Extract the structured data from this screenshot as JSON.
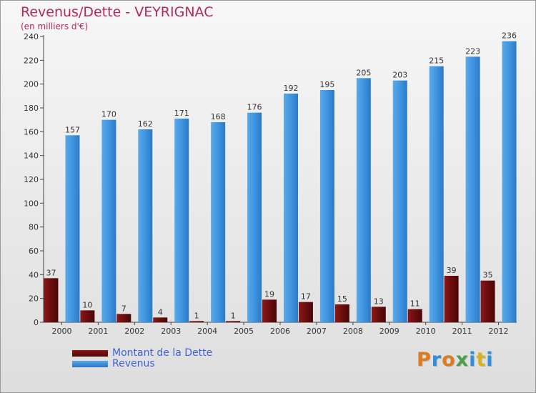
{
  "chart_data": {
    "type": "bar",
    "title": "Revenus/Dette - VEYRIGNAC",
    "subtitle": "(en milliers d'€)",
    "categories": [
      "2000",
      "2001",
      "2002",
      "2003",
      "2004",
      "2005",
      "2006",
      "2007",
      "2008",
      "2009",
      "2010",
      "2011",
      "2012"
    ],
    "series": [
      {
        "name": "Montant de la Dette",
        "color": "#6b0d0d",
        "values": [
          37,
          10,
          7,
          4,
          1,
          1,
          19,
          17,
          15,
          13,
          11,
          39,
          35
        ]
      },
      {
        "name": "Revenus",
        "color": "#3c8fdc",
        "values": [
          157,
          170,
          162,
          171,
          168,
          176,
          192,
          195,
          205,
          203,
          215,
          223,
          236
        ]
      }
    ],
    "yticks": [
      0,
      20,
      40,
      60,
      80,
      100,
      120,
      140,
      160,
      180,
      200,
      220,
      240
    ],
    "ylim": [
      0,
      240
    ],
    "xlabel": "",
    "ylabel": "",
    "grid": false,
    "legend_position": "bottom-left"
  },
  "logo": {
    "letters": [
      {
        "ch": "P",
        "color": "#e07a1e"
      },
      {
        "ch": "r",
        "color": "#2f8fd8"
      },
      {
        "ch": "o",
        "color": "#e07a1e"
      },
      {
        "ch": "x",
        "color": "#4aa04a"
      },
      {
        "ch": "i",
        "color": "#2f8fd8"
      },
      {
        "ch": "t",
        "color": "#d9b21e"
      },
      {
        "ch": "i",
        "color": "#2f8fd8"
      }
    ]
  }
}
